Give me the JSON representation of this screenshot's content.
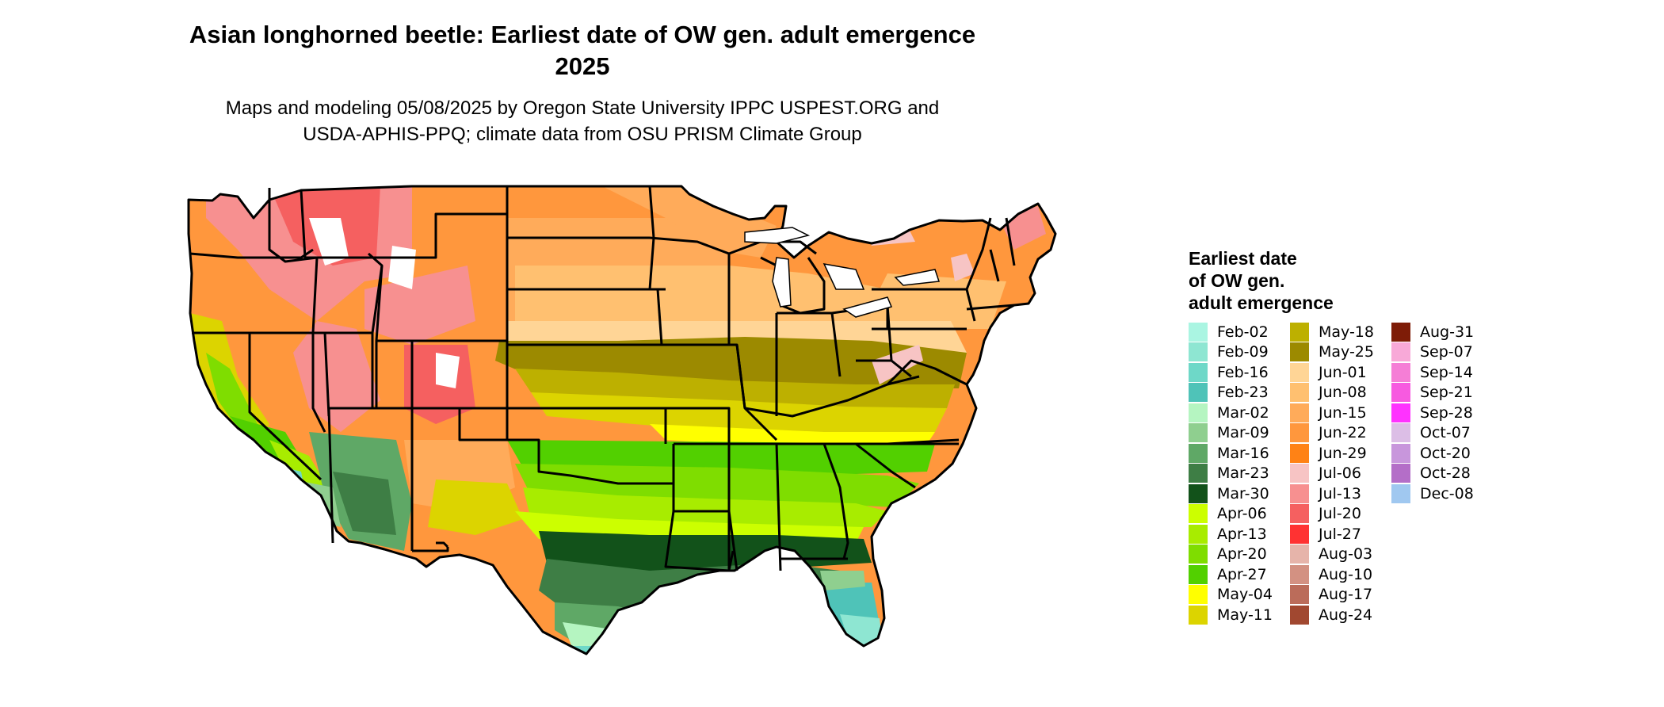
{
  "title": {
    "line1": "Asian longhorned beetle: Earliest date of OW gen. adult emergence",
    "line2": "2025"
  },
  "subtitle": {
    "line1": "Maps and modeling 05/08/2025 by Oregon State University IPPC USPEST.ORG and",
    "line2": "USDA-APHIS-PPQ; climate data from OSU PRISM Climate Group"
  },
  "legend": {
    "title_lines": [
      "Earliest date",
      "of OW gen.",
      "adult emergence"
    ],
    "columns": [
      [
        {
          "label": "Feb-02",
          "color": "#aaf5e2"
        },
        {
          "label": "Feb-09",
          "color": "#8ee6d2"
        },
        {
          "label": "Feb-16",
          "color": "#6ed8c8"
        },
        {
          "label": "Feb-23",
          "color": "#4fc3b8"
        },
        {
          "label": "Mar-02",
          "color": "#b5f5c1"
        },
        {
          "label": "Mar-09",
          "color": "#8fcf8f"
        },
        {
          "label": "Mar-16",
          "color": "#5fa866"
        },
        {
          "label": "Mar-23",
          "color": "#3e7e45"
        },
        {
          "label": "Mar-30",
          "color": "#12521a"
        },
        {
          "label": "Apr-06",
          "color": "#ccff00"
        },
        {
          "label": "Apr-13",
          "color": "#a8ec00"
        },
        {
          "label": "Apr-20",
          "color": "#7fdd00"
        },
        {
          "label": "Apr-27",
          "color": "#52d000"
        },
        {
          "label": "May-04",
          "color": "#ffff00"
        },
        {
          "label": "May-11",
          "color": "#dcd400"
        }
      ],
      [
        {
          "label": "May-18",
          "color": "#bdb000"
        },
        {
          "label": "May-25",
          "color": "#9c8a00"
        },
        {
          "label": "Jun-01",
          "color": "#ffd596"
        },
        {
          "label": "Jun-08",
          "color": "#ffc070"
        },
        {
          "label": "Jun-15",
          "color": "#ffab5a"
        },
        {
          "label": "Jun-22",
          "color": "#ff973d"
        },
        {
          "label": "Jun-29",
          "color": "#ff8215"
        },
        {
          "label": "Jul-06",
          "color": "#f7c4c4"
        },
        {
          "label": "Jul-13",
          "color": "#f79090"
        },
        {
          "label": "Jul-20",
          "color": "#f56060"
        },
        {
          "label": "Jul-27",
          "color": "#ff3232"
        },
        {
          "label": "Aug-03",
          "color": "#e6b4aa"
        },
        {
          "label": "Aug-10",
          "color": "#d39182"
        },
        {
          "label": "Aug-17",
          "color": "#bb6c5a"
        },
        {
          "label": "Aug-24",
          "color": "#a14830"
        }
      ],
      [
        {
          "label": "Aug-31",
          "color": "#7e1c07"
        },
        {
          "label": "Sep-07",
          "color": "#f8a9d8"
        },
        {
          "label": "Sep-14",
          "color": "#f57ed6"
        },
        {
          "label": "Sep-21",
          "color": "#f75ae0"
        },
        {
          "label": "Sep-28",
          "color": "#ff32ff"
        },
        {
          "label": "Oct-07",
          "color": "#dcbee6"
        },
        {
          "label": "Oct-20",
          "color": "#c896dc"
        },
        {
          "label": "Oct-28",
          "color": "#b46ec8"
        },
        {
          "label": "Dec-08",
          "color": "#a0c8f0"
        }
      ]
    ]
  }
}
